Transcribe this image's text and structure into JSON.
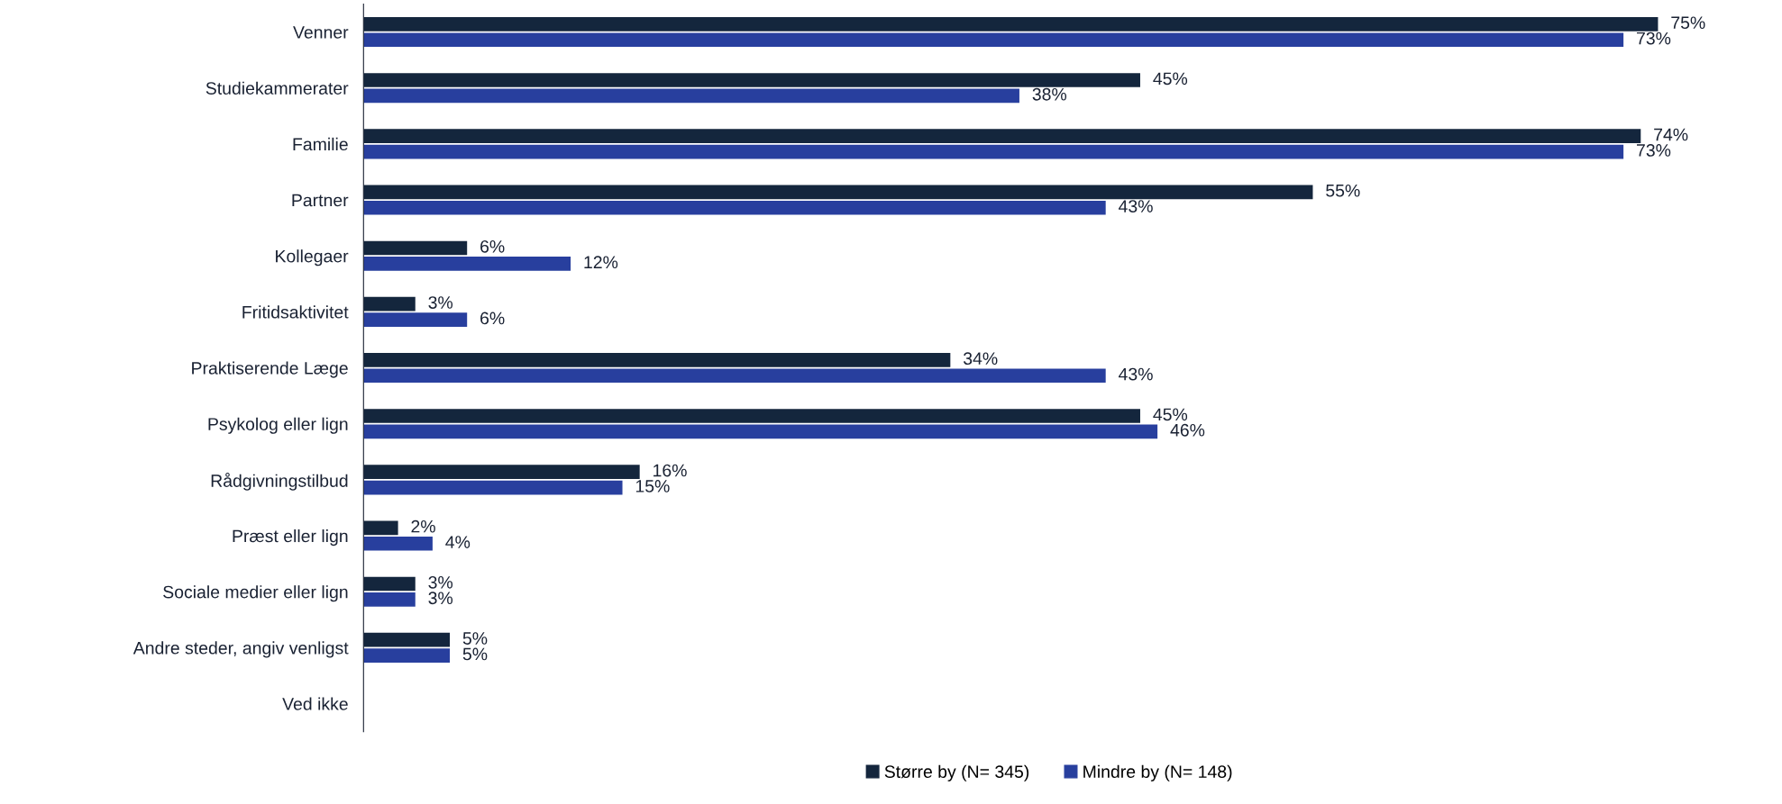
{
  "chart_data": {
    "type": "bar",
    "orientation": "horizontal",
    "legend": "bottom",
    "grid": false,
    "categories": [
      "Venner",
      "Studiekammerater",
      "Familie",
      "Partner",
      "Kollegaer",
      "Fritidsaktivitet",
      "Praktiserende Læge",
      "Psykolog eller lign",
      "Rådgivningstilbud",
      "Præst eller lign",
      "Sociale medier eller lign",
      "Andre steder, angiv venligst",
      "Ved ikke"
    ],
    "series": [
      {
        "name": "Større by (N= 345)",
        "color": "#14263d",
        "values": [
          75,
          45,
          74,
          55,
          6,
          3,
          34,
          45,
          16,
          2,
          3,
          5,
          null
        ],
        "value_labels": [
          "75%",
          "45%",
          "74%",
          "55%",
          "6%",
          "3%",
          "34%",
          "45%",
          "16%",
          "2%",
          "3%",
          "5%",
          null
        ]
      },
      {
        "name": "Mindre by (N= 148)",
        "color": "#283f9e",
        "values": [
          73,
          38,
          73,
          43,
          12,
          6,
          43,
          46,
          15,
          4,
          3,
          5,
          null
        ],
        "value_labels": [
          "73%",
          "38%",
          "73%",
          "43%",
          "12%",
          "6%",
          "43%",
          "46%",
          "15%",
          "4%",
          "3%",
          "5%",
          null
        ]
      }
    ]
  }
}
